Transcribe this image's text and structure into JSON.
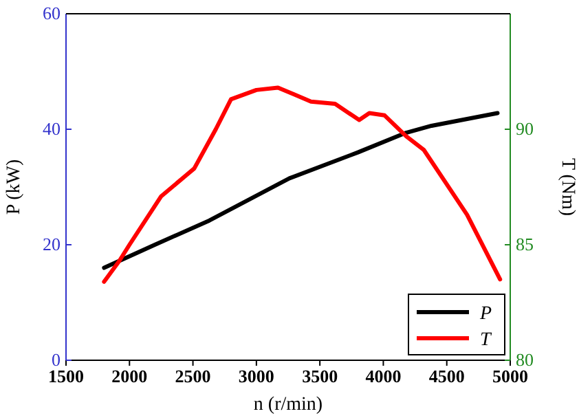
{
  "chart_data": {
    "type": "line",
    "xlabel": "n (r/min)",
    "ylabel": "P (kW)",
    "y2label": "T (Nm)",
    "xlim": [
      1500,
      5000
    ],
    "xticks": [
      1500,
      2000,
      2500,
      3000,
      3500,
      4000,
      4500,
      5000
    ],
    "ylim": [
      0,
      60
    ],
    "yticks": [
      0,
      20,
      40,
      60
    ],
    "y2lim": [
      80,
      95
    ],
    "y2ticks": [
      80,
      85,
      90
    ],
    "legend": "bottom right",
    "grid": false,
    "marker": "none",
    "line_style": "solid",
    "series": [
      {
        "name": "P",
        "color": "#000000",
        "x": [
          1800,
          2200,
          2630,
          3260,
          3800,
          4180,
          4380,
          4900
        ],
        "values": [
          16,
          20,
          24.2,
          31.5,
          36,
          39.4,
          40.6,
          42.8
        ]
      },
      {
        "name": "T",
        "color": "#ff0000",
        "axis": "y2",
        "x": [
          1800,
          1920,
          2000,
          2250,
          2510,
          2680,
          2800,
          3000,
          3170,
          3300,
          3430,
          3620,
          3810,
          3890,
          4010,
          4180,
          4320,
          4660,
          4920
        ],
        "values": [
          83.4,
          84.3,
          85,
          87.1,
          88.3,
          90,
          91.3,
          91.7,
          91.8,
          91.5,
          91.2,
          91.1,
          90.4,
          90.7,
          90.6,
          89.7,
          89.1,
          86.3,
          83.5
        ]
      }
    ]
  }
}
